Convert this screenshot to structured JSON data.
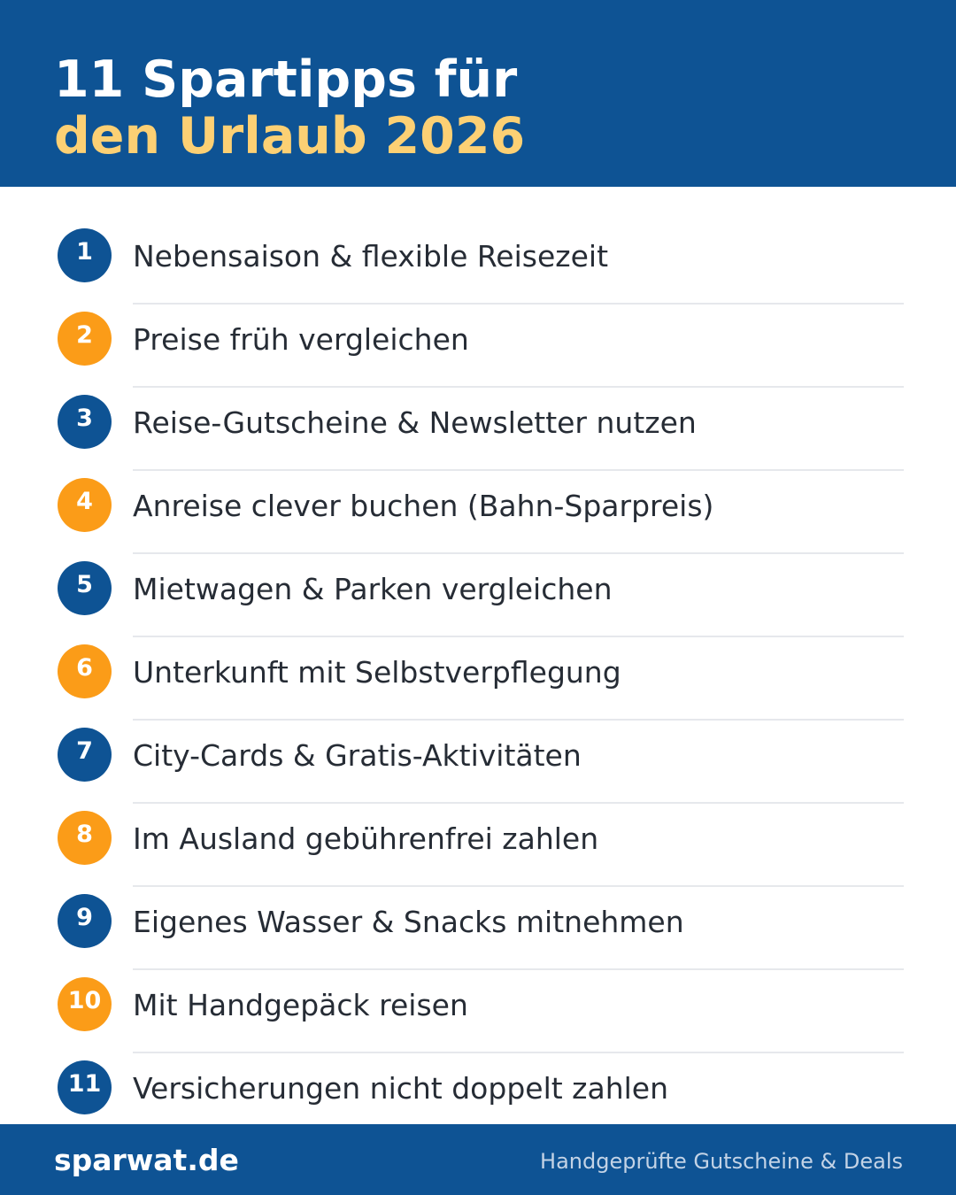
{
  "header": {
    "title_line1": "11 Spartipps für",
    "title_line2": "den Urlaub 2026"
  },
  "tips": [
    {
      "number": "1",
      "text": "Nebensaison & flexible Reisezeit"
    },
    {
      "number": "2",
      "text": "Preise früh vergleichen"
    },
    {
      "number": "3",
      "text": "Reise-Gutscheine & Newsletter nutzen"
    },
    {
      "number": "4",
      "text": "Anreise clever buchen (Bahn-Sparpreis)"
    },
    {
      "number": "5",
      "text": "Mietwagen & Parken vergleichen"
    },
    {
      "number": "6",
      "text": "Unterkunft mit Selbstverpflegung"
    },
    {
      "number": "7",
      "text": "City-Cards & Gratis-Aktivitäten"
    },
    {
      "number": "8",
      "text": "Im Ausland gebührenfrei zahlen"
    },
    {
      "number": "9",
      "text": "Eigenes Wasser & Snacks mitnehmen"
    },
    {
      "number": "10",
      "text": "Mit Handgepäck reisen"
    },
    {
      "number": "11",
      "text": "Versicherungen nicht doppelt zahlen"
    }
  ],
  "footer": {
    "brand": "sparwat.de",
    "tagline": "Handgeprüfte Gutscheine & Deals"
  },
  "colors": {
    "primary_blue": "#0e5394",
    "accent_orange": "#fb9c18",
    "title_yellow": "#fcd074",
    "text_dark": "#262c35"
  }
}
